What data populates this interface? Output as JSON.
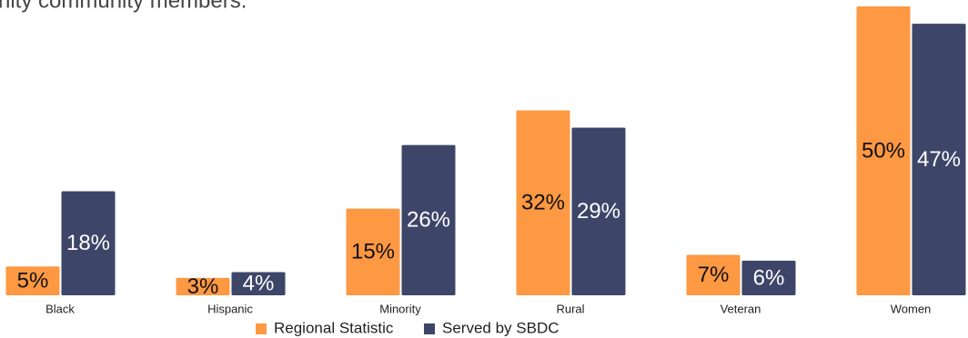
{
  "chart_data": {
    "type": "bar",
    "subtitle": "nity community members.",
    "categories": [
      "Black",
      "Hispanic",
      "Minority",
      "Rural",
      "Veteran",
      "Women"
    ],
    "series": [
      {
        "name": "Regional Statistic",
        "color": "#fd9843",
        "values": [
          5,
          3,
          15,
          32,
          7,
          50
        ],
        "value_labels": [
          "5%",
          "3%",
          "15%",
          "32%",
          "7%",
          "50%"
        ]
      },
      {
        "name": "Served by SBDC",
        "color": "#3d4669",
        "values": [
          18,
          4,
          26,
          29,
          6,
          47
        ],
        "value_labels": [
          "18%",
          "4%",
          "26%",
          "29%",
          "6%",
          "47%"
        ]
      }
    ],
    "legend": "bottom"
  }
}
